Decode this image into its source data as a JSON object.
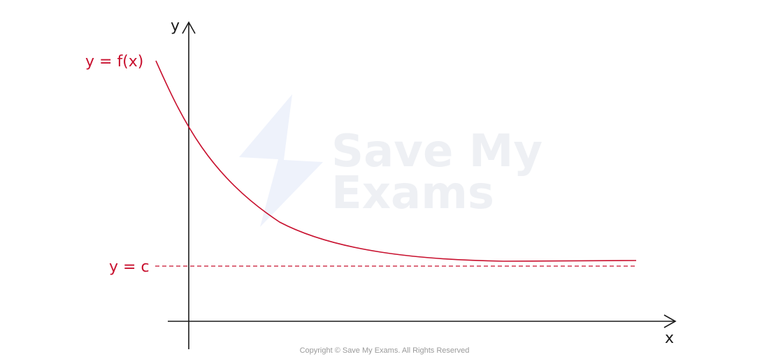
{
  "diagram": {
    "curve_label": "y = f(x)",
    "asymptote_label": "y = c",
    "x_axis_label": "x",
    "y_axis_label": "y"
  },
  "colors": {
    "curve": "#c8102e",
    "asymptote": "#c8102e",
    "axes": "#1a1a1a"
  },
  "watermark": {
    "line1": "Save My",
    "line2": "Exams",
    "icon": "lightning-bolt-icon"
  },
  "footer": {
    "copyright": "Copyright © Save My Exams. All Rights Reserved"
  }
}
